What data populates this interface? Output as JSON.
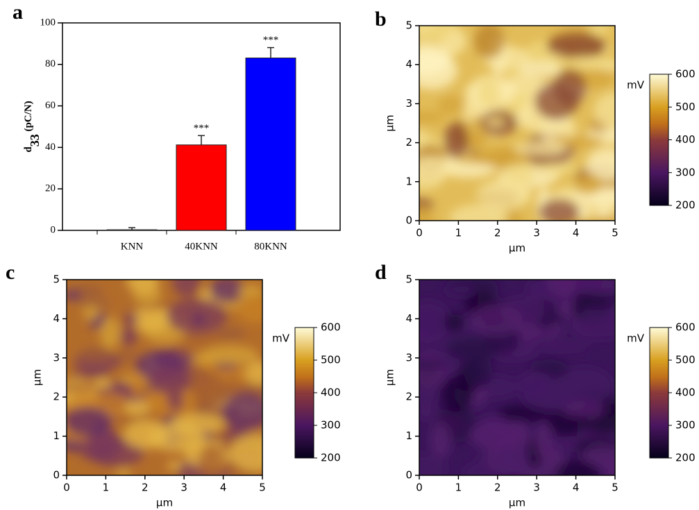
{
  "chart_data": [
    {
      "type": "bar",
      "panel": "a",
      "ylabel": {
        "main": "d",
        "sub": "33",
        "unit": " (pC/N)"
      },
      "categories": [
        "KNN",
        "40KNN",
        "80KNN"
      ],
      "values": [
        0.3,
        41.2,
        83.1
      ],
      "errors": [
        1,
        4.5,
        5
      ],
      "colors": [
        "#ffffff",
        "#ff0000",
        "#0000ff"
      ],
      "annotations": [
        {
          "x": "40KNN",
          "text": "***"
        },
        {
          "x": "80KNN",
          "text": "***"
        }
      ],
      "ylim": [
        0,
        100
      ],
      "yticks": [
        0,
        20,
        40,
        60,
        80,
        100
      ]
    },
    {
      "type": "map",
      "panel": "b",
      "xlabel": "μm",
      "ylabel": "μm",
      "xlim": [
        0,
        5
      ],
      "ylim": [
        0,
        5
      ],
      "xticks": [
        0,
        1,
        2,
        3,
        4,
        5
      ],
      "yticks": [
        0,
        1,
        2,
        3,
        4,
        5
      ],
      "colorbar": {
        "label": "mV",
        "lim": [
          200,
          600
        ],
        "ticks": [
          200,
          300,
          400,
          500,
          600
        ]
      }
    },
    {
      "type": "map",
      "panel": "c",
      "xlabel": "μm",
      "ylabel": "μm",
      "xlim": [
        0,
        5
      ],
      "ylim": [
        0,
        5
      ],
      "xticks": [
        0,
        1,
        2,
        3,
        4,
        5
      ],
      "yticks": [
        0,
        1,
        2,
        3,
        4,
        5
      ],
      "colorbar": {
        "label": "mV",
        "lim": [
          200,
          600
        ],
        "ticks": [
          200,
          300,
          400,
          500,
          600
        ]
      }
    },
    {
      "type": "map",
      "panel": "d",
      "xlabel": "μm",
      "ylabel": "μm",
      "xlim": [
        0,
        5
      ],
      "ylim": [
        0,
        5
      ],
      "xticks": [
        0,
        1,
        2,
        3,
        4,
        5
      ],
      "yticks": [
        0,
        1,
        2,
        3,
        4,
        5
      ],
      "colorbar": {
        "label": "mV",
        "lim": [
          200,
          600
        ],
        "ticks": [
          200,
          300,
          400,
          500,
          600
        ]
      }
    }
  ]
}
